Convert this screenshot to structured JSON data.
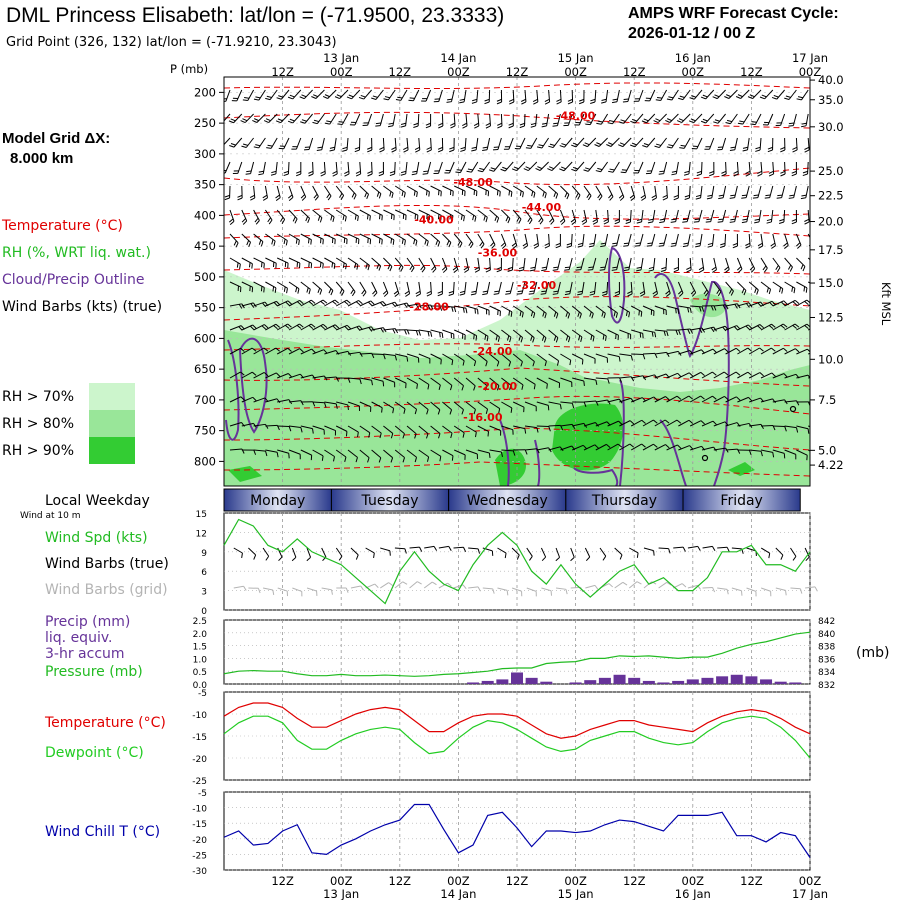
{
  "header": {
    "title": "DML Princess Elisabeth:  lat/lon = (-71.9500, 23.3333)",
    "subtitle": "Grid Point (326, 132) lat/lon = (-71.9210, 23.3043)",
    "cycle_label": "AMPS WRF Forecast Cycle:",
    "cycle_value": "2026-01-12 / 00  Z"
  },
  "legend": {
    "model_grid_label": "Model Grid ΔX:",
    "model_grid_value": "8.000 km",
    "temperature": "Temperature (°C)",
    "rh": "RH (%, WRT liq. wat.)",
    "cloud": "Cloud/Precip Outline",
    "wind_barbs": "Wind Barbs (kts) (true)",
    "rh_bins": [
      {
        "label": "RH > 70%",
        "color": "#ccf5cc"
      },
      {
        "label": "RH > 80%",
        "color": "#99e699"
      },
      {
        "label": "RH > 90%",
        "color": "#33cc33"
      }
    ]
  },
  "time_axis": {
    "top_hour_labels": [
      "12Z",
      "00Z",
      "12Z",
      "00Z",
      "12Z",
      "00Z",
      "12Z",
      "00Z",
      "12Z",
      "00Z"
    ],
    "top_date_labels": [
      "13 Jan",
      "14 Jan",
      "15 Jan",
      "16 Jan",
      "17 Jan"
    ],
    "bottom_hour_labels": [
      "12Z",
      "00Z",
      "12Z",
      "00Z",
      "12Z",
      "00Z",
      "12Z",
      "00Z",
      "12Z",
      "00Z"
    ],
    "bottom_date_labels": [
      "13 Jan",
      "14 Jan",
      "15 Jan",
      "16 Jan",
      "17 Jan"
    ],
    "hours": [
      12,
      24,
      36,
      48,
      60,
      72,
      84,
      96,
      108,
      120
    ]
  },
  "weekday_bar": {
    "label": "Local Weekday",
    "days": [
      {
        "name": "Monday",
        "start_hour": 0,
        "end_hour": 22
      },
      {
        "name": "Tuesday",
        "start_hour": 22,
        "end_hour": 46
      },
      {
        "name": "Wednesday",
        "start_hour": 46,
        "end_hour": 70
      },
      {
        "name": "Thursday",
        "start_hour": 70,
        "end_hour": 94
      },
      {
        "name": "Friday",
        "start_hour": 94,
        "end_hour": 118
      }
    ]
  },
  "wind_panel": {
    "wind_at_label": "Wind at 10 m",
    "speed_label": "Wind Spd (kts)",
    "barbs_true_label": "Wind Barbs (true)",
    "barbs_grid_label": "Wind Barbs (grid)",
    "speed_color": "#22bb22",
    "grid_color": "#b4b4b4"
  },
  "precip_panel": {
    "precip_label": "Precip (mm)",
    "equiv_label": "liq. equiv.",
    "accum_label": "3-hr accum",
    "pressure_label": "Pressure (mb)",
    "right_unit": "(mb)",
    "precip_color": "#663399",
    "pressure_color": "#22bb22"
  },
  "temp_panel": {
    "temp_label": "Temperature (°C)",
    "dew_label": "Dewpoint (°C)",
    "temp_color": "#e00000",
    "dew_color": "#22cc22"
  },
  "chill_panel": {
    "label": "Wind Chill T (°C)",
    "color": "#0000aa"
  },
  "chart_data": [
    {
      "type": "heatmap",
      "description_scope": "vertical cross-section",
      "x_unit": "forecast hour",
      "xlim": [
        0,
        120
      ],
      "ylabel": "P (mb)",
      "ylim": [
        840,
        175
      ],
      "y_ticks": [
        200,
        250,
        300,
        350,
        400,
        450,
        500,
        550,
        600,
        650,
        700,
        750,
        800
      ],
      "y_ticks_labels": [
        "200",
        "250",
        "300",
        "350",
        "400",
        "450",
        "500",
        "550",
        "600",
        "650",
        "700",
        "750",
        "800"
      ],
      "right_axis_label": "Kft MSL",
      "right_ticks": [
        {
          "label": "40.0",
          "p": 180
        },
        {
          "label": "35.0",
          "p": 212
        },
        {
          "label": "30.0",
          "p": 256
        },
        {
          "label": "25.0",
          "p": 328
        },
        {
          "label": "22.5",
          "p": 368
        },
        {
          "label": "20.0",
          "p": 410
        },
        {
          "label": "17.5",
          "p": 456
        },
        {
          "label": "15.0",
          "p": 510
        },
        {
          "label": "12.5",
          "p": 566
        },
        {
          "label": "10.0",
          "p": 634
        },
        {
          "label": "7.5",
          "p": 700
        },
        {
          "label": "5.0",
          "p": 782
        },
        {
          "label": "4.22",
          "p": 806
        }
      ],
      "temperature_contours": [
        {
          "label": "-48.00",
          "label_hour": 72,
          "label_p": 244
        },
        {
          "label": "-48.00",
          "label_hour": 51,
          "label_p": 352
        },
        {
          "label": "-44.00",
          "label_hour": 65,
          "label_p": 393
        },
        {
          "label": "-40.00",
          "label_hour": 43,
          "label_p": 413
        },
        {
          "label": "-36.00",
          "label_hour": 56,
          "label_p": 467
        },
        {
          "label": "-32.00",
          "label_hour": 64,
          "label_p": 520
        },
        {
          "label": "-28.00",
          "label_hour": 42,
          "label_p": 555
        },
        {
          "label": "-24.00",
          "label_hour": 55,
          "label_p": 627
        },
        {
          "label": "-20.00",
          "label_hour": 56,
          "label_p": 684
        },
        {
          "label": "-16.00",
          "label_hour": 53,
          "label_p": 734
        }
      ]
    },
    {
      "type": "line",
      "name": "wind",
      "x": [
        0,
        3,
        6,
        9,
        12,
        15,
        18,
        21,
        24,
        27,
        30,
        33,
        36,
        39,
        42,
        45,
        48,
        51,
        54,
        57,
        60,
        63,
        66,
        69,
        72,
        75,
        78,
        81,
        84,
        87,
        90,
        93,
        96,
        99,
        102,
        105,
        108,
        111,
        114,
        117,
        120
      ],
      "series": [
        {
          "name": "Wind Spd (kts)",
          "values": [
            10,
            14,
            13,
            10,
            9,
            11,
            9,
            8,
            7,
            5,
            3,
            1,
            6,
            9,
            6,
            4,
            3,
            7,
            10,
            12,
            10,
            6,
            4,
            7,
            4,
            2,
            4,
            6,
            7,
            4,
            5,
            3,
            3,
            5,
            9,
            9,
            10,
            7,
            7,
            6,
            9
          ]
        }
      ],
      "ylim": [
        0,
        15
      ],
      "y_ticks": [
        0,
        3,
        6,
        9,
        12,
        15
      ]
    },
    {
      "type": "line",
      "name": "precip_pressure",
      "x": [
        0,
        3,
        6,
        9,
        12,
        15,
        18,
        21,
        24,
        27,
        30,
        33,
        36,
        39,
        42,
        45,
        48,
        51,
        54,
        57,
        60,
        63,
        66,
        69,
        72,
        75,
        78,
        81,
        84,
        87,
        90,
        93,
        96,
        99,
        102,
        105,
        108,
        111,
        114,
        117,
        120
      ],
      "series": [
        {
          "name": "Pressure (mb)",
          "values": [
            833.6,
            834.0,
            834.1,
            834.0,
            834.0,
            833.6,
            833.3,
            833.3,
            833.5,
            833.3,
            833.3,
            833.4,
            833.3,
            833.2,
            833.3,
            833.5,
            833.6,
            833.8,
            834.0,
            834.4,
            834.5,
            834.5,
            835.2,
            835.4,
            835.5,
            836.0,
            836.0,
            836.4,
            836.3,
            836.4,
            836.2,
            836.0,
            836.2,
            836.2,
            836.8,
            837.6,
            838.2,
            838.6,
            839.2,
            839.8,
            840.1
          ]
        },
        {
          "name": "Precip (mm)",
          "values": [
            0,
            0,
            0,
            0,
            0,
            0,
            0,
            0,
            0,
            0,
            0,
            0,
            0,
            0,
            0,
            0,
            0,
            0.02,
            0.04,
            0.06,
            0.15,
            0.08,
            0.03,
            0,
            0.02,
            0.05,
            0.08,
            0.12,
            0.08,
            0.04,
            0.02,
            0.04,
            0.06,
            0.08,
            0.1,
            0.12,
            0.1,
            0.06,
            0.03,
            0.02,
            0
          ]
        }
      ],
      "ylim": [
        0,
        2.5
      ],
      "y_ticks": [
        0,
        0.5,
        1.0,
        1.5,
        2.0,
        2.5
      ],
      "y_ticks_labels": [
        "0.0",
        "0.5",
        "1.0",
        "1.5",
        "2.0",
        "2.5"
      ],
      "y2lim": [
        832,
        842
      ],
      "y2_ticks": [
        832,
        834,
        836,
        838,
        840,
        842
      ]
    },
    {
      "type": "line",
      "name": "temperature",
      "x": [
        0,
        3,
        6,
        9,
        12,
        15,
        18,
        21,
        24,
        27,
        30,
        33,
        36,
        39,
        42,
        45,
        48,
        51,
        54,
        57,
        60,
        63,
        66,
        69,
        72,
        75,
        78,
        81,
        84,
        87,
        90,
        93,
        96,
        99,
        102,
        105,
        108,
        111,
        114,
        117,
        120
      ],
      "series": [
        {
          "name": "Temperature (°C)",
          "values": [
            -10.5,
            -8.5,
            -7.5,
            -7.5,
            -8.5,
            -11.0,
            -13.0,
            -13.0,
            -11.5,
            -10.0,
            -9.0,
            -8.5,
            -9.0,
            -11.5,
            -14.0,
            -14.0,
            -12.0,
            -10.5,
            -10.0,
            -10.0,
            -10.5,
            -12.5,
            -14.5,
            -15.5,
            -15.0,
            -13.5,
            -12.5,
            -11.5,
            -11.5,
            -12.5,
            -13.0,
            -13.5,
            -14.0,
            -12.0,
            -10.5,
            -9.5,
            -9.0,
            -9.5,
            -11.0,
            -13.0,
            -14.5
          ]
        },
        {
          "name": "Dewpoint (°C)",
          "values": [
            -14.5,
            -12.0,
            -10.5,
            -10.5,
            -12.0,
            -16.0,
            -18.0,
            -18.0,
            -16.0,
            -14.5,
            -13.5,
            -13.0,
            -13.5,
            -16.5,
            -19.0,
            -18.5,
            -15.5,
            -13.0,
            -11.5,
            -12.0,
            -13.5,
            -15.5,
            -17.5,
            -18.5,
            -18.0,
            -16.0,
            -15.0,
            -14.0,
            -14.0,
            -15.5,
            -16.5,
            -17.0,
            -16.5,
            -14.0,
            -12.0,
            -11.0,
            -10.5,
            -11.0,
            -13.0,
            -16.0,
            -20.0
          ]
        }
      ],
      "ylim": [
        -25,
        -5
      ],
      "y_ticks": [
        -25,
        -20,
        -15,
        -10,
        -5
      ]
    },
    {
      "type": "line",
      "name": "wind_chill",
      "x": [
        0,
        3,
        6,
        9,
        12,
        15,
        18,
        21,
        24,
        27,
        30,
        33,
        36,
        39,
        42,
        45,
        48,
        51,
        54,
        57,
        60,
        63,
        66,
        69,
        72,
        75,
        78,
        81,
        84,
        87,
        90,
        93,
        96,
        99,
        102,
        105,
        108,
        111,
        114,
        117,
        120
      ],
      "series": [
        {
          "name": "Wind Chill T (°C)",
          "values": [
            -19.5,
            -17.5,
            -22.0,
            -21.5,
            -17.5,
            -15.5,
            -24.5,
            -25.0,
            -22.0,
            -20.0,
            -17.5,
            -15.5,
            -14.0,
            -9.0,
            -9.0,
            -17.0,
            -24.5,
            -22.0,
            -12.5,
            -11.5,
            -16.5,
            -22.5,
            -17.5,
            -17.5,
            -18.0,
            -17.5,
            -15.5,
            -14.0,
            -14.5,
            -16.0,
            -17.5,
            -12.5,
            -12.5,
            -12.5,
            -11.5,
            -19.0,
            -19.0,
            -21.0,
            -18.0,
            -19.0,
            -26.0
          ]
        }
      ],
      "ylim": [
        -30,
        -5
      ],
      "y_ticks": [
        -30,
        -25,
        -20,
        -15,
        -10,
        -5
      ]
    }
  ]
}
